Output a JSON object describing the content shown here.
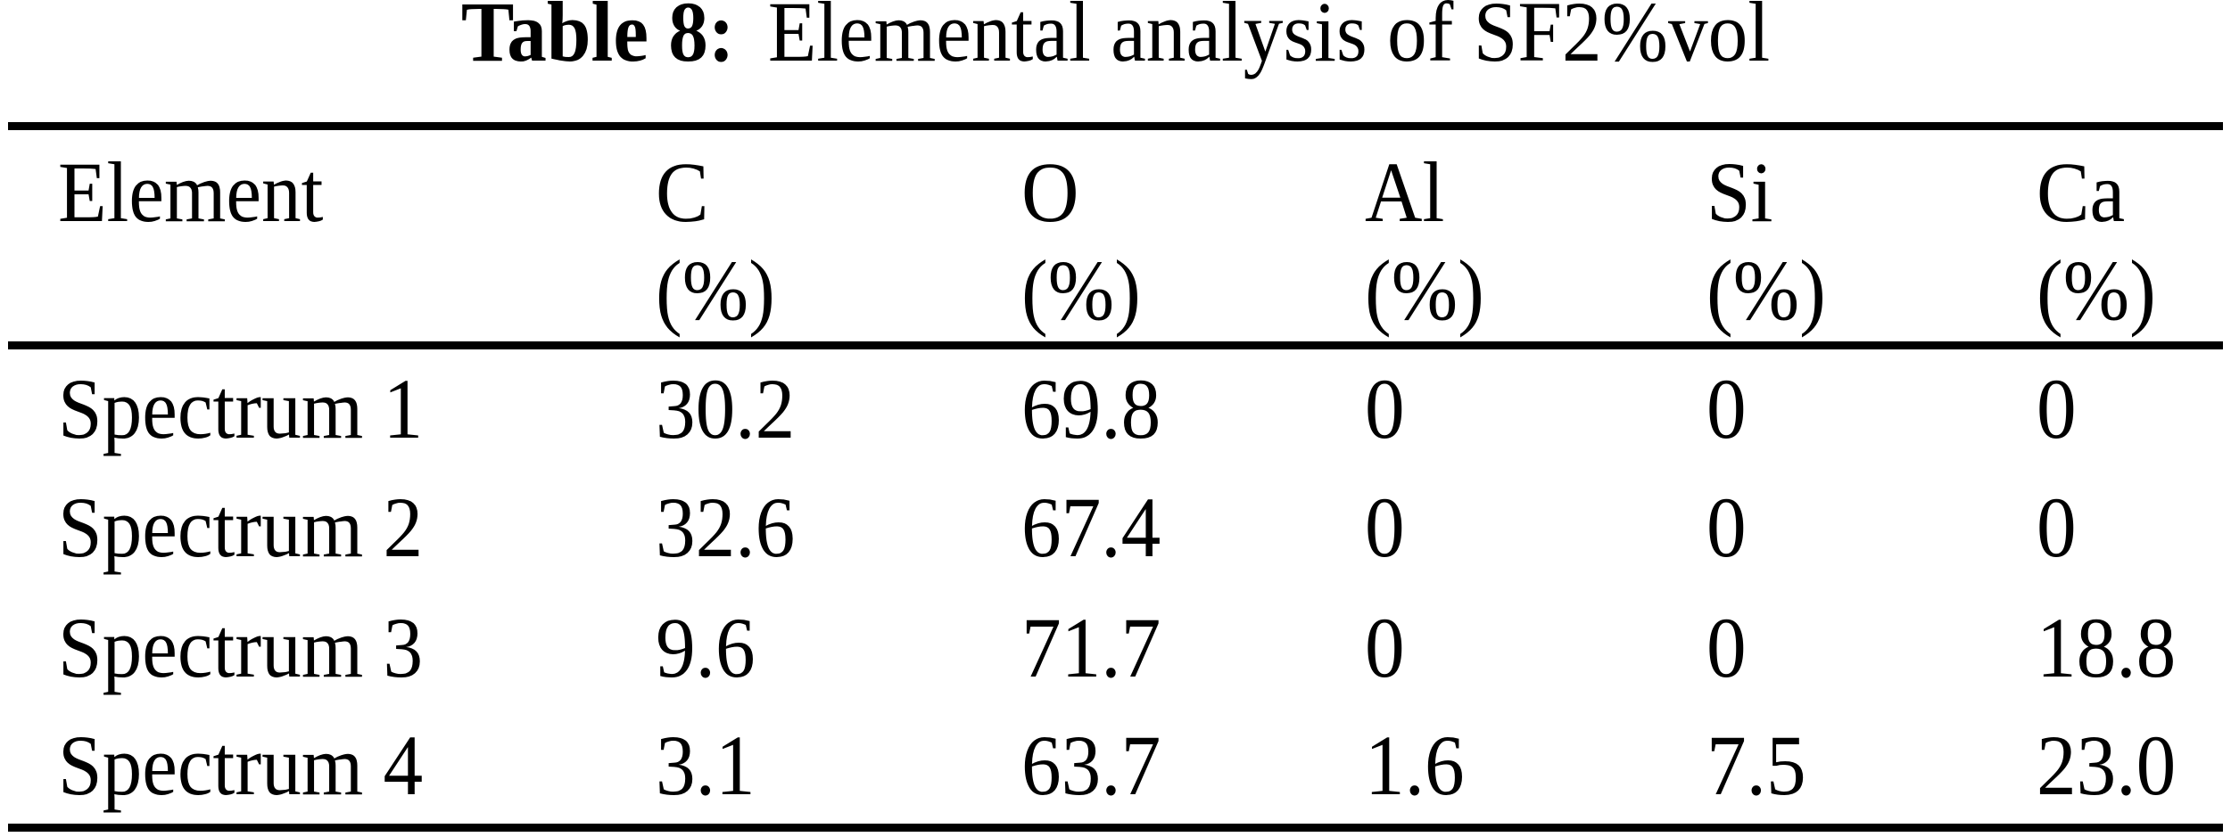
{
  "page": {
    "background_color": "#ffffff",
    "text_color": "#000000"
  },
  "caption": {
    "label": "Table 8:",
    "text": "Elemental analysis of SF2%vol"
  },
  "table": {
    "columns": [
      {
        "header": "Element",
        "unit": ""
      },
      {
        "header": "C",
        "unit": "(%)"
      },
      {
        "header": "O",
        "unit": "(%)"
      },
      {
        "header": "Al",
        "unit": "(%)"
      },
      {
        "header": "Si",
        "unit": "(%)"
      },
      {
        "header": "Ca",
        "unit": "(%)"
      }
    ],
    "rows": [
      {
        "label": "Spectrum 1",
        "values": [
          "30.2",
          "69.8",
          "0",
          "0",
          "0"
        ]
      },
      {
        "label": "Spectrum 2",
        "values": [
          "32.6",
          "67.4",
          "0",
          "0",
          "0"
        ]
      },
      {
        "label": "Spectrum 3",
        "values": [
          "9.6",
          "71.7",
          "0",
          "0",
          "18.8"
        ]
      },
      {
        "label": "Spectrum 4",
        "values": [
          "3.1",
          "63.7",
          "1.6",
          "7.5",
          "23.0"
        ]
      }
    ]
  }
}
